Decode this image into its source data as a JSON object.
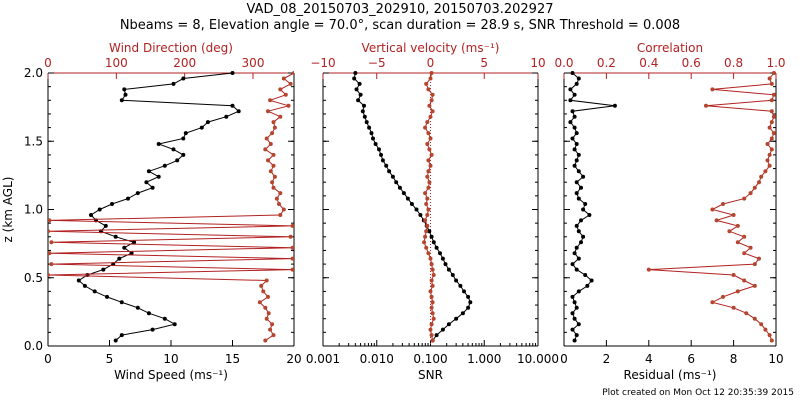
{
  "header": {
    "title_line1": "VAD_08_20150703_202910, 20150703.202927",
    "title_line2": "Nbeams = 8, Elevation angle = 70.0°, scan duration = 28.9 s, SNR Threshold = 0.008"
  },
  "footer": "Plot created on Mon Oct 12 20:35:39 2015",
  "colors": {
    "black": "#000000",
    "red": "#b22222",
    "marker_red": "#b5452c"
  },
  "chart_data": [
    {
      "type": "line",
      "ylabel": "z (km AGL)",
      "ylim": [
        0,
        2
      ],
      "yticks": [
        "0.0",
        "0.5",
        "1.0",
        "1.5",
        "2.0"
      ],
      "yticks_v": [
        0,
        0.5,
        1,
        1.5,
        2
      ],
      "bottom_axis": {
        "label": "Wind Speed (ms⁻¹)",
        "lim": [
          0,
          20
        ],
        "ticks": [
          "0",
          "5",
          "10",
          "15",
          "20"
        ],
        "ticks_v": [
          0,
          5,
          10,
          15,
          20
        ],
        "log": false
      },
      "top_axis": {
        "label": "Wind Direction (deg)",
        "lim": [
          0,
          360
        ],
        "ticks": [
          "0",
          "100",
          "200",
          "300"
        ],
        "ticks_v": [
          0,
          100,
          200,
          300
        ],
        "log": false
      },
      "series": [
        {
          "axis": "bottom",
          "color": "black",
          "z": [
            0.04,
            0.08,
            0.12,
            0.16,
            0.2,
            0.24,
            0.28,
            0.32,
            0.36,
            0.4,
            0.44,
            0.48,
            0.52,
            0.56,
            0.6,
            0.64,
            0.68,
            0.72,
            0.76,
            0.8,
            0.84,
            0.88,
            0.92,
            0.96,
            1.0,
            1.04,
            1.08,
            1.12,
            1.16,
            1.2,
            1.24,
            1.28,
            1.32,
            1.36,
            1.4,
            1.44,
            1.48,
            1.52,
            1.56,
            1.6,
            1.64,
            1.68,
            1.72,
            1.76,
            1.8,
            1.84,
            1.88,
            1.92,
            1.96,
            2.0
          ],
          "values": [
            5.5,
            6.0,
            8.5,
            10.3,
            9.5,
            8.2,
            7.3,
            6.0,
            4.8,
            3.8,
            3.0,
            2.5,
            3.2,
            4.5,
            5.3,
            5.8,
            6.8,
            6.2,
            7.0,
            5.5,
            4.3,
            4.7,
            3.9,
            3.5,
            4.2,
            5.2,
            6.5,
            7.3,
            8.5,
            8.0,
            9.0,
            8.2,
            9.5,
            10.5,
            11.0,
            10.2,
            9.0,
            11.0,
            11.2,
            12.5,
            13.0,
            14.5,
            15.5,
            15.0,
            6.0,
            6.3,
            6.2,
            10.2,
            11.0,
            15.0
          ]
        },
        {
          "axis": "top",
          "color": "red",
          "z": [
            0.04,
            0.08,
            0.12,
            0.16,
            0.2,
            0.24,
            0.28,
            0.32,
            0.36,
            0.4,
            0.44,
            0.48,
            0.52,
            0.56,
            0.6,
            0.64,
            0.68,
            0.72,
            0.76,
            0.8,
            0.84,
            0.88,
            0.92,
            0.96,
            1.0,
            1.04,
            1.08,
            1.12,
            1.16,
            1.2,
            1.24,
            1.28,
            1.32,
            1.36,
            1.4,
            1.44,
            1.48,
            1.52,
            1.56,
            1.6,
            1.64,
            1.68,
            1.72,
            1.76,
            1.8,
            1.84,
            1.88,
            1.92,
            1.96,
            2.0
          ],
          "values": [
            318,
            330,
            325,
            328,
            320,
            323,
            318,
            310,
            322,
            315,
            312,
            320,
            0,
            358,
            5,
            358,
            2,
            358,
            5,
            355,
            0,
            358,
            2,
            340,
            345,
            338,
            335,
            340,
            330,
            328,
            332,
            326,
            330,
            322,
            330,
            318,
            326,
            320,
            328,
            332,
            330,
            340,
            322,
            352,
            325,
            348,
            340,
            355,
            345,
            360
          ]
        }
      ]
    },
    {
      "type": "line",
      "ylim": [
        0,
        2
      ],
      "bottom_axis": {
        "label": "SNR",
        "lim": [
          0.001,
          10
        ],
        "ticks": [
          "0.001",
          "0.010",
          "0.100",
          "1.000",
          "10.000"
        ],
        "ticks_v": [
          0.001,
          0.01,
          0.1,
          1,
          10
        ],
        "log": true
      },
      "top_axis": {
        "label": "Vertical velocity (ms⁻¹)",
        "lim": [
          -10,
          10
        ],
        "ticks": [
          "−10",
          "−5",
          "0",
          "5",
          "10"
        ],
        "ticks_v": [
          -10,
          -5,
          0,
          5,
          10
        ],
        "log": false
      },
      "series": [
        {
          "axis": "bottom",
          "color": "black",
          "z": [
            0.04,
            0.08,
            0.12,
            0.16,
            0.2,
            0.24,
            0.28,
            0.32,
            0.36,
            0.4,
            0.44,
            0.48,
            0.52,
            0.56,
            0.6,
            0.64,
            0.68,
            0.72,
            0.76,
            0.8,
            0.84,
            0.88,
            0.92,
            0.96,
            1.0,
            1.04,
            1.08,
            1.12,
            1.16,
            1.2,
            1.24,
            1.28,
            1.32,
            1.36,
            1.4,
            1.44,
            1.48,
            1.52,
            1.56,
            1.6,
            1.64,
            1.68,
            1.72,
            1.76,
            1.8,
            1.84,
            1.88,
            1.92,
            1.96,
            2.0
          ],
          "values": [
            0.11,
            0.13,
            0.17,
            0.22,
            0.3,
            0.4,
            0.5,
            0.55,
            0.5,
            0.42,
            0.36,
            0.3,
            0.26,
            0.22,
            0.19,
            0.17,
            0.15,
            0.13,
            0.115,
            0.105,
            0.095,
            0.085,
            0.075,
            0.065,
            0.055,
            0.045,
            0.038,
            0.032,
            0.027,
            0.023,
            0.02,
            0.017,
            0.015,
            0.013,
            0.012,
            0.011,
            0.0095,
            0.0085,
            0.008,
            0.0072,
            0.0065,
            0.006,
            0.0055,
            0.0058,
            0.0045,
            0.005,
            0.0042,
            0.0048,
            0.0038,
            0.004
          ]
        },
        {
          "axis": "top",
          "color": "red",
          "z": [
            0.04,
            0.08,
            0.12,
            0.16,
            0.2,
            0.24,
            0.28,
            0.32,
            0.36,
            0.4,
            0.44,
            0.48,
            0.52,
            0.56,
            0.6,
            0.64,
            0.68,
            0.72,
            0.76,
            0.8,
            0.84,
            0.88,
            0.92,
            0.96,
            1.0,
            1.04,
            1.08,
            1.12,
            1.16,
            1.2,
            1.24,
            1.28,
            1.32,
            1.36,
            1.4,
            1.44,
            1.48,
            1.52,
            1.56,
            1.6,
            1.64,
            1.68,
            1.72,
            1.76,
            1.8,
            1.84,
            1.88,
            1.92,
            1.96,
            2.0
          ],
          "values": [
            0.2,
            0.1,
            0.0,
            0.1,
            0.3,
            0.2,
            0.1,
            0.2,
            0.1,
            0.0,
            0.2,
            0.1,
            0.3,
            0.2,
            0.1,
            0.0,
            -0.2,
            -0.4,
            -0.6,
            -0.5,
            -0.4,
            -0.3,
            -0.5,
            -0.3,
            -0.2,
            -0.4,
            -0.3,
            -0.5,
            -0.2,
            -0.1,
            -0.3,
            -0.2,
            0.0,
            -0.2,
            0.1,
            -0.1,
            -0.3,
            0.0,
            -0.2,
            -0.5,
            -0.3,
            0.0,
            0.2,
            -0.1,
            0.1,
            0.2,
            -0.2,
            -0.4,
            0.0,
            0.1
          ]
        }
      ],
      "reference_line": {
        "axis": "top",
        "value": 0,
        "style": "dotted",
        "color": "red"
      }
    },
    {
      "type": "line",
      "ylim": [
        0,
        2
      ],
      "bottom_axis": {
        "label": "Residual (ms⁻¹)",
        "lim": [
          0,
          10
        ],
        "ticks": [
          "0",
          "2",
          "4",
          "6",
          "8",
          "10"
        ],
        "ticks_v": [
          0,
          2,
          4,
          6,
          8,
          10
        ],
        "log": false
      },
      "top_axis": {
        "label": "Correlation",
        "lim": [
          0,
          1
        ],
        "ticks": [
          "0.0",
          "0.2",
          "0.4",
          "0.6",
          "0.8",
          "1.0"
        ],
        "ticks_v": [
          0,
          0.2,
          0.4,
          0.6,
          0.8,
          1.0
        ],
        "log": false
      },
      "series": [
        {
          "axis": "bottom",
          "color": "black",
          "z": [
            0.04,
            0.08,
            0.12,
            0.16,
            0.2,
            0.24,
            0.28,
            0.32,
            0.36,
            0.4,
            0.44,
            0.48,
            0.52,
            0.56,
            0.6,
            0.64,
            0.68,
            0.72,
            0.76,
            0.8,
            0.84,
            0.88,
            0.92,
            0.96,
            1.0,
            1.04,
            1.08,
            1.12,
            1.16,
            1.2,
            1.24,
            1.28,
            1.32,
            1.36,
            1.4,
            1.44,
            1.48,
            1.52,
            1.56,
            1.6,
            1.64,
            1.68,
            1.72,
            1.76,
            1.8,
            1.84,
            1.88,
            1.92,
            1.96,
            2.0
          ],
          "values": [
            0.5,
            0.6,
            0.4,
            0.7,
            0.5,
            0.4,
            0.6,
            0.5,
            0.4,
            0.7,
            1.1,
            1.3,
            1.0,
            0.6,
            0.4,
            0.7,
            0.5,
            0.6,
            0.8,
            0.9,
            0.7,
            0.6,
            0.8,
            1.2,
            0.9,
            1.0,
            0.7,
            0.6,
            0.8,
            0.6,
            0.9,
            0.7,
            0.5,
            0.6,
            0.7,
            0.5,
            0.6,
            0.4,
            0.6,
            0.5,
            0.3,
            0.5,
            0.4,
            2.4,
            0.3,
            0.5,
            0.3,
            0.6,
            0.7,
            0.4
          ]
        },
        {
          "axis": "top",
          "color": "red",
          "z": [
            0.04,
            0.08,
            0.12,
            0.16,
            0.2,
            0.24,
            0.28,
            0.32,
            0.36,
            0.4,
            0.44,
            0.48,
            0.52,
            0.56,
            0.6,
            0.64,
            0.68,
            0.72,
            0.76,
            0.8,
            0.84,
            0.88,
            0.92,
            0.96,
            1.0,
            1.04,
            1.08,
            1.12,
            1.16,
            1.2,
            1.24,
            1.28,
            1.32,
            1.36,
            1.4,
            1.44,
            1.48,
            1.52,
            1.56,
            1.6,
            1.64,
            1.68,
            1.72,
            1.76,
            1.8,
            1.84,
            1.88,
            1.92,
            1.96,
            2.0
          ],
          "values": [
            0.98,
            0.97,
            0.95,
            0.93,
            0.9,
            0.86,
            0.8,
            0.7,
            0.75,
            0.82,
            0.9,
            0.85,
            0.8,
            0.4,
            0.9,
            0.92,
            0.85,
            0.88,
            0.82,
            0.85,
            0.78,
            0.82,
            0.72,
            0.8,
            0.7,
            0.75,
            0.85,
            0.88,
            0.9,
            0.92,
            0.93,
            0.95,
            0.97,
            0.96,
            0.97,
            0.98,
            0.96,
            0.98,
            0.99,
            0.97,
            0.98,
            0.99,
            0.98,
            0.67,
            0.98,
            0.99,
            0.7,
            0.98,
            0.97,
            0.99
          ]
        }
      ]
    }
  ]
}
